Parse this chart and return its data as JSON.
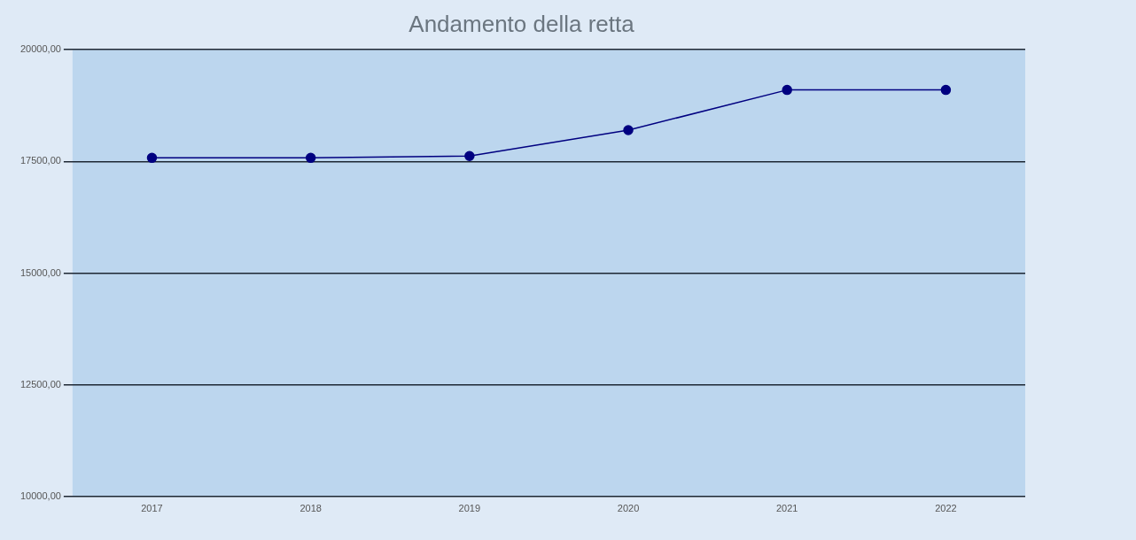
{
  "chart_data": {
    "type": "line",
    "title": "Andamento della retta",
    "categories": [
      "2017",
      "2018",
      "2019",
      "2020",
      "2021",
      "2022"
    ],
    "series": [
      {
        "color": "#000080",
        "values": [
          17580,
          17580,
          17620,
          18200,
          19100,
          19100
        ]
      }
    ],
    "ylim": [
      10000,
      20000
    ],
    "yticks": [
      {
        "value": 10000,
        "label": "10000,00"
      },
      {
        "value": 12500,
        "label": "12500,00"
      },
      {
        "value": 15000,
        "label": "15000,00"
      },
      {
        "value": 17500,
        "label": "17500,00"
      },
      {
        "value": 20000,
        "label": "20000,00"
      }
    ],
    "grid": "y",
    "marker": "circle",
    "line_style": "solid",
    "legend": false
  }
}
